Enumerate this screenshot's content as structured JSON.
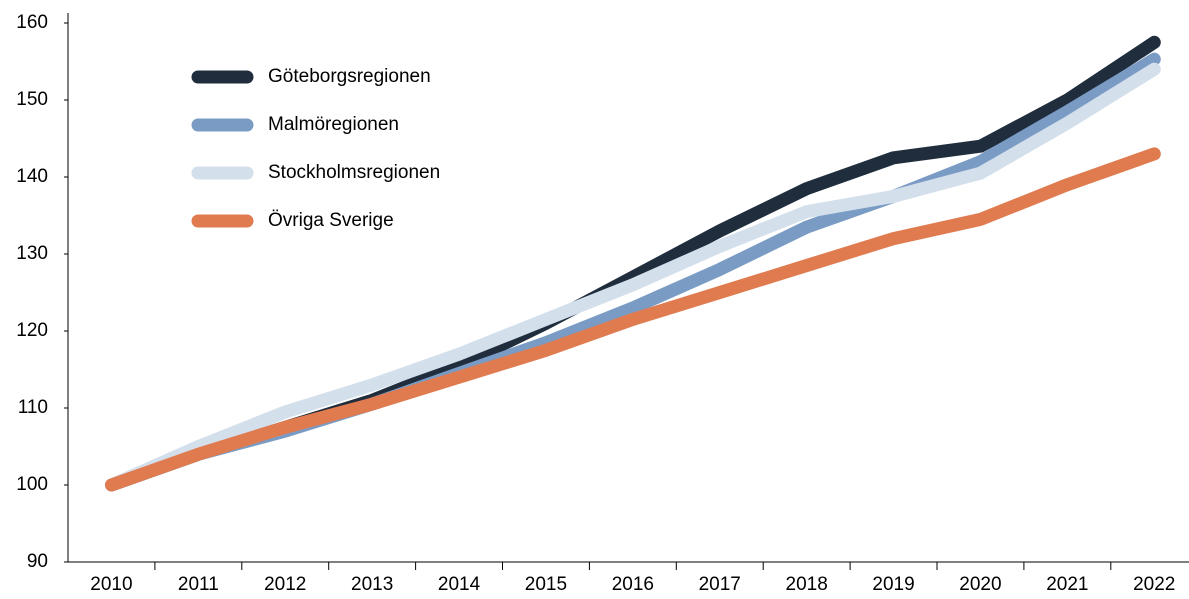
{
  "chart_data": {
    "type": "line",
    "categories": [
      "2010",
      "2011",
      "2012",
      "2013",
      "2014",
      "2015",
      "2016",
      "2017",
      "2018",
      "2019",
      "2020",
      "2021",
      "2022"
    ],
    "series": [
      {
        "name": "Göteborgsregionen",
        "color": "#1f2d3d",
        "values": [
          100,
          104,
          107.5,
          111,
          115.5,
          121,
          127,
          133,
          138.5,
          142.5,
          144,
          150,
          157.5
        ]
      },
      {
        "name": "Malmöregionen",
        "color": "#7a9cc4",
        "values": [
          100,
          104,
          107,
          110.5,
          114.5,
          118.5,
          123,
          128,
          133.5,
          137.5,
          142,
          148.5,
          155.3
        ]
      },
      {
        "name": "Stockholmsregionen",
        "color": "#d4dfec",
        "values": [
          100,
          105,
          109.5,
          113,
          117,
          121.5,
          126,
          131,
          135.5,
          137.5,
          140.5,
          147,
          154
        ]
      },
      {
        "name": "Övriga Sverige",
        "color": "#e07a4f",
        "values": [
          100,
          104,
          107.5,
          110.5,
          114,
          117.5,
          121.5,
          125,
          128.5,
          132,
          134.5,
          139,
          143
        ]
      }
    ],
    "ylim": [
      90,
      160
    ],
    "yticks": [
      90,
      100,
      110,
      120,
      130,
      140,
      150,
      160
    ],
    "legend": "upper left"
  }
}
